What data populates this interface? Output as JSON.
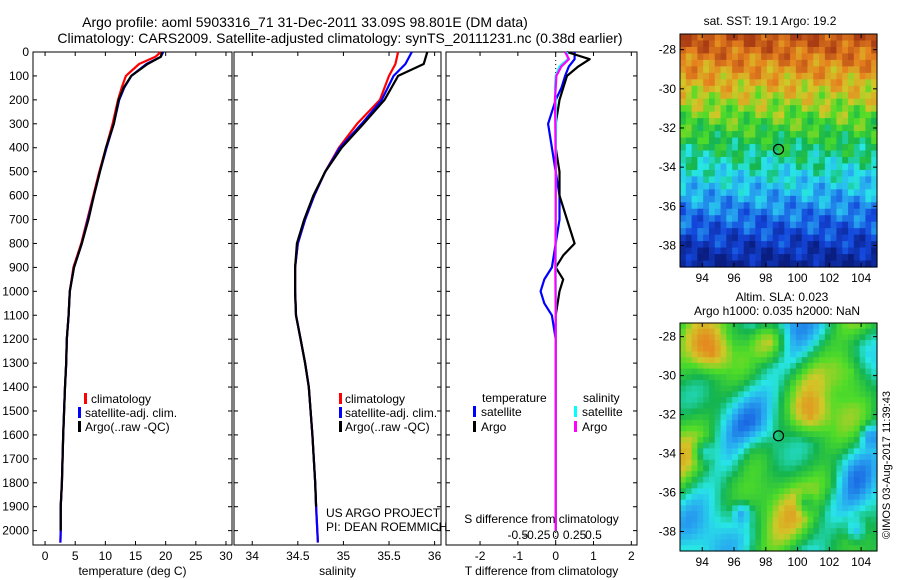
{
  "header": {
    "line1": "Argo profile: aoml 5903316_71 31-Dec-2011 33.09S 98.801E (DM data)",
    "line2": "Climatology: CARS2009. Satellite-adjusted climatology: synTS_20111231.nc (0.38d earlier)"
  },
  "colors": {
    "climatology": "#ff0000",
    "satellite": "#0000ff",
    "argo": "#000000",
    "salinity_satellite": "#00ffff",
    "salinity_argo": "#ff00ff"
  },
  "pressure_ticks": [
    0,
    100,
    200,
    300,
    400,
    500,
    600,
    700,
    800,
    900,
    1000,
    1100,
    1200,
    1300,
    1400,
    1500,
    1600,
    1700,
    1800,
    1900,
    2000
  ],
  "legend": {
    "climatology": "climatology",
    "satellite": "satellite-adj. clim.",
    "argo": "Argo(..raw -QC)"
  },
  "diff_legend": {
    "temperature_title": "temperature",
    "salinity_title": "salinity",
    "satellite": "satellite",
    "argo": "Argo"
  },
  "project": {
    "line1": "US ARGO PROJECT",
    "line2": "PI: DEAN ROEMMICH"
  },
  "sst_map": {
    "title": "sat. SST: 19.1 Argo: 19.2",
    "yticks": [
      "-28",
      "-30",
      "-32",
      "-34",
      "-36",
      "-38"
    ],
    "xticks": [
      "94",
      "96",
      "98",
      "100",
      "102",
      "104"
    ]
  },
  "sla_map": {
    "title1": "Altim. SLA: 0.023",
    "title2": "Argo h1000: 0.035 h2000: NaN",
    "yticks": [
      "-28",
      "-30",
      "-32",
      "-34",
      "-36",
      "-38"
    ],
    "xticks": [
      "94",
      "96",
      "98",
      "100",
      "102",
      "104"
    ]
  },
  "credit": "©IMOS 03-Aug-2017 11:39:43",
  "chart_data": [
    {
      "type": "line",
      "xlabel": "temperature (deg C)",
      "ylabel": "",
      "xlim": [
        -2,
        31
      ],
      "ylim": [
        2060,
        0
      ],
      "xticks": [
        0,
        5,
        10,
        15,
        20,
        25,
        30
      ],
      "series": [
        {
          "name": "climatology",
          "x": [
            19.2,
            18.3,
            15.6,
            13.4,
            12.7,
            12.1,
            11.2,
            10.1,
            9.0,
            8.0,
            7.0,
            6.0,
            4.7,
            4.1,
            3.9,
            3.6,
            3.5,
            3.3,
            3.0,
            2.8,
            2.6,
            2.6,
            2.55
          ],
          "y": [
            0,
            20,
            50,
            100,
            150,
            200,
            300,
            400,
            500,
            600,
            700,
            800,
            900,
            1000,
            1100,
            1200,
            1300,
            1400,
            1600,
            1800,
            1900,
            2000,
            2050
          ]
        },
        {
          "name": "satellite-adj. clim.",
          "x": [
            19.6,
            19.2,
            16.8,
            14.3,
            13.1,
            12.3,
            11.4,
            10.2,
            9.1,
            8.1,
            7.1,
            6.1,
            4.8,
            4.1,
            3.9,
            3.6,
            3.5,
            3.3,
            3.0,
            2.8,
            2.6,
            2.6,
            2.55
          ],
          "y": [
            0,
            20,
            50,
            100,
            150,
            200,
            300,
            400,
            500,
            600,
            700,
            800,
            900,
            1000,
            1100,
            1200,
            1300,
            1400,
            1600,
            1800,
            1900,
            2000,
            2050
          ]
        },
        {
          "name": "Argo(..raw -QC)",
          "x": [
            19.4,
            19.2,
            17.0,
            14.3,
            13.0,
            12.2,
            11.4,
            10.1,
            9.1,
            8.1,
            7.2,
            6.1,
            4.8,
            4.1,
            3.9,
            3.6,
            3.5,
            3.3,
            3.0,
            2.8,
            2.6,
            2.6
          ],
          "y": [
            0,
            20,
            50,
            100,
            150,
            200,
            300,
            400,
            500,
            600,
            700,
            800,
            900,
            1000,
            1100,
            1200,
            1300,
            1400,
            1600,
            1800,
            1900,
            2000
          ]
        }
      ]
    },
    {
      "type": "line",
      "xlabel": "salinity",
      "ylabel": "",
      "xlim": [
        33.8,
        36.07
      ],
      "ylim": [
        2060,
        0
      ],
      "xticks": [
        34,
        34.5,
        35,
        35.5,
        36
      ],
      "series": [
        {
          "name": "climatology",
          "x": [
            35.6,
            35.57,
            35.5,
            35.4,
            35.15,
            34.95,
            34.8,
            34.68,
            34.58,
            34.5,
            34.47,
            34.47,
            34.48,
            34.53,
            34.58,
            34.62,
            34.66,
            34.69,
            34.7,
            34.72
          ],
          "y": [
            0,
            50,
            100,
            200,
            300,
            400,
            500,
            600,
            700,
            800,
            900,
            1000,
            1100,
            1200,
            1300,
            1400,
            1600,
            1800,
            1900,
            2050
          ]
        },
        {
          "name": "satellite-adj. clim.",
          "x": [
            35.75,
            35.68,
            35.55,
            35.42,
            35.2,
            34.96,
            34.8,
            34.68,
            34.58,
            34.5,
            34.47,
            34.47,
            34.48,
            34.53,
            34.58,
            34.62,
            34.66,
            34.69,
            34.7,
            34.72
          ],
          "y": [
            0,
            50,
            100,
            200,
            300,
            400,
            500,
            600,
            700,
            800,
            900,
            1000,
            1100,
            1200,
            1300,
            1400,
            1600,
            1800,
            1900,
            2050
          ]
        },
        {
          "name": "Argo(..raw -QC)",
          "x": [
            35.92,
            35.88,
            35.6,
            35.45,
            35.22,
            34.98,
            34.8,
            34.67,
            34.57,
            34.49,
            34.47,
            34.47,
            34.48,
            34.53,
            34.58,
            34.62,
            34.66,
            34.69,
            34.7
          ],
          "y": [
            0,
            50,
            100,
            200,
            300,
            400,
            500,
            600,
            700,
            800,
            900,
            1000,
            1100,
            1200,
            1300,
            1400,
            1600,
            1800,
            1900
          ]
        }
      ]
    },
    {
      "type": "line",
      "xlabel": "T difference from climatology",
      "ylabel": "",
      "title": "S difference from climatology",
      "xlim": [
        -2.9,
        2.15
      ],
      "ylim": [
        2060,
        0
      ],
      "xticks": [
        -2,
        -1,
        0,
        1,
        2
      ],
      "top_xticks": [
        "-0.5",
        "-0.25",
        "0",
        "0.25",
        "0.5"
      ],
      "series": [
        {
          "name": "temperature satellite",
          "x": [
            0.5,
            0.5,
            0.35,
            0.25,
            0.15,
            0,
            -0.2,
            -0.1,
            0,
            0.1,
            0.1,
            0,
            -0.1,
            -0.3,
            -0.4,
            -0.3,
            -0.1,
            0,
            0,
            0,
            0
          ],
          "y": [
            0,
            30,
            60,
            100,
            150,
            200,
            300,
            400,
            500,
            600,
            700,
            800,
            900,
            950,
            1000,
            1050,
            1100,
            1200,
            1500,
            1800,
            2000
          ]
        },
        {
          "name": "temperature Argo",
          "x": [
            0.3,
            0.9,
            0.6,
            0.3,
            0.2,
            0.1,
            0,
            0,
            0.1,
            0.1,
            0.3,
            0.5,
            0.2,
            0,
            0.2,
            0.1,
            0,
            0,
            0,
            0
          ],
          "y": [
            0,
            30,
            60,
            100,
            150,
            200,
            300,
            400,
            500,
            600,
            700,
            800,
            850,
            900,
            950,
            1000,
            1100,
            1200,
            1500,
            2000
          ]
        },
        {
          "name": "salinity satellite",
          "x": [
            0.3,
            0.32,
            0.1,
            0,
            -0.02,
            0,
            0.01,
            0,
            0,
            0,
            0,
            0,
            0,
            0
          ],
          "y": [
            0,
            30,
            60,
            100,
            150,
            200,
            300,
            500,
            700,
            900,
            1100,
            1400,
            1700,
            2000
          ]
        },
        {
          "name": "salinity Argo",
          "x": [
            0.25,
            0.35,
            0.15,
            0.02,
            0,
            -0.02,
            -0.01,
            0,
            0,
            -0.01,
            0,
            0,
            0,
            0
          ],
          "y": [
            0,
            30,
            60,
            100,
            150,
            200,
            300,
            500,
            700,
            900,
            1100,
            1400,
            1700,
            2000
          ]
        }
      ]
    }
  ]
}
